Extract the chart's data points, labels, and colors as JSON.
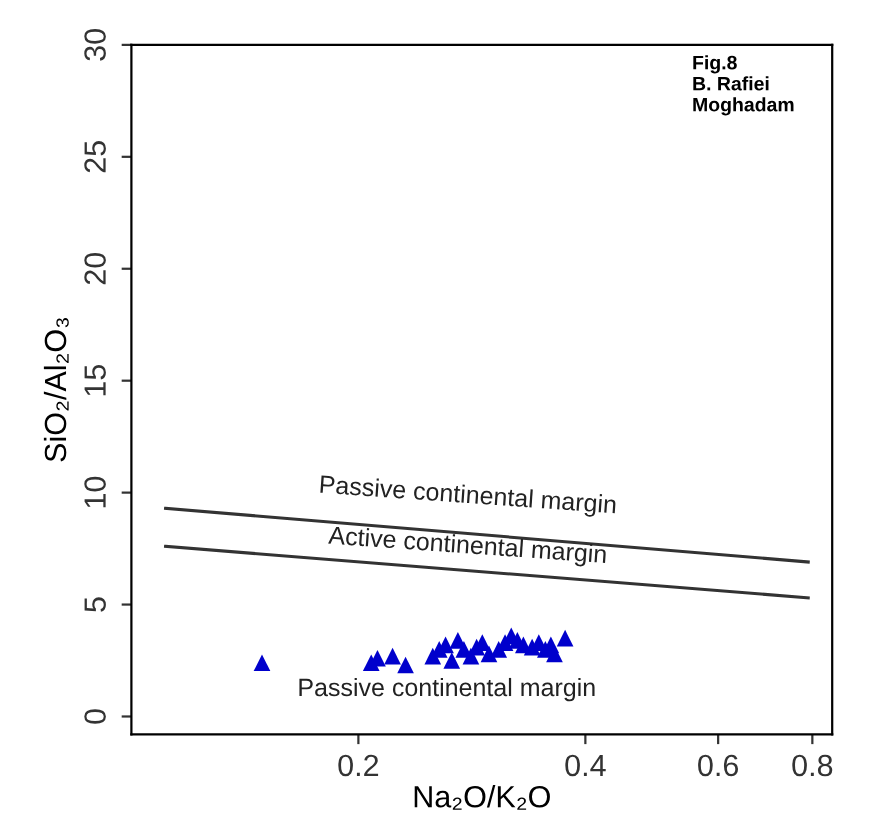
{
  "chart_data": {
    "type": "scatter",
    "xlabel": "Na₂O/K₂O",
    "ylabel": "SiO₂/Al₂O₃",
    "log": "x",
    "xlim": [
      0.1,
      0.85
    ],
    "xticks": [
      0.2,
      0.4,
      0.6,
      0.8
    ],
    "ylim": [
      -0.8,
      30
    ],
    "yticks": [
      0,
      5,
      10,
      15,
      20,
      25,
      30
    ],
    "grid": false,
    "legend": false,
    "marker": "triangle",
    "series": [
      {
        "type": "scatter",
        "color": "#0000cc",
        "x": [
          0.149,
          0.208,
          0.212,
          0.222,
          0.231,
          0.251,
          0.256,
          0.261,
          0.266,
          0.271,
          0.276,
          0.282,
          0.287,
          0.292,
          0.298,
          0.307,
          0.313,
          0.319,
          0.325,
          0.331,
          0.34,
          0.347,
          0.354,
          0.36,
          0.364,
          0.376
        ],
        "values": [
          2.4,
          2.4,
          2.6,
          2.7,
          2.3,
          2.7,
          3.0,
          3.2,
          2.5,
          3.4,
          3.0,
          2.7,
          3.1,
          3.3,
          2.8,
          3.0,
          3.3,
          3.6,
          3.4,
          3.2,
          3.1,
          3.3,
          3.0,
          3.2,
          2.8,
          3.5
        ]
      },
      {
        "type": "line",
        "color": "#333333",
        "marker": "none",
        "x": [
          0.111,
          0.79
        ],
        "values": [
          9.3,
          6.9
        ]
      },
      {
        "type": "line",
        "color": "#333333",
        "marker": "none",
        "x": [
          0.111,
          0.79
        ],
        "values": [
          7.6,
          5.3
        ]
      }
    ],
    "annotations": [
      "Passive continental margin",
      "Active continental margin",
      "Passive continental margin",
      "Fig.8\nB. Rafiei\nMoghadam"
    ]
  }
}
